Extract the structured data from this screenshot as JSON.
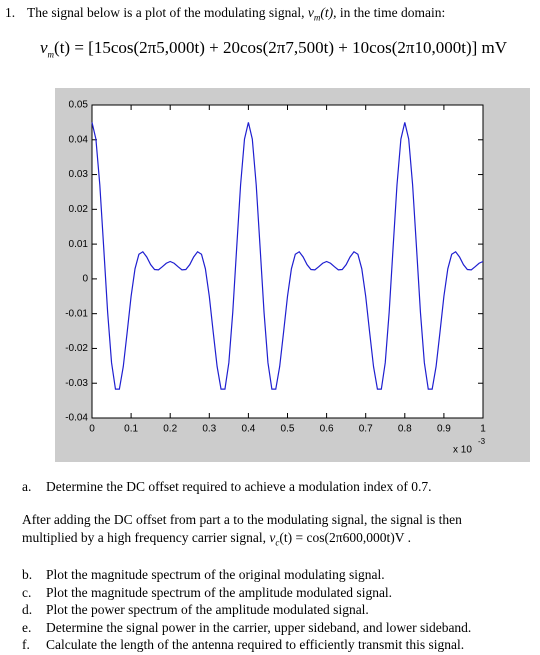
{
  "question": {
    "number": "1.",
    "intro_before": "The signal below is a plot of the modulating signal, ",
    "intro_var": "v",
    "intro_sub": "m",
    "intro_arg": "(t)",
    "intro_after": ", in the time domain:"
  },
  "formula": {
    "var": "v",
    "sub": "m",
    "rhs": "(t) = [15cos(2π5,000t) + 20cos(2π7,500t) + 10cos(2π10,000t)] mV"
  },
  "chart_data": {
    "type": "line",
    "x": [
      0,
      0.01,
      0.02,
      0.03,
      0.04,
      0.05,
      0.06,
      0.07,
      0.08,
      0.09,
      0.1,
      0.11,
      0.12,
      0.13,
      0.14,
      0.15,
      0.16,
      0.17,
      0.18,
      0.19,
      0.2,
      0.21,
      0.22,
      0.23,
      0.24,
      0.25,
      0.26,
      0.27,
      0.28,
      0.29,
      0.3,
      0.31,
      0.32,
      0.33,
      0.34,
      0.35,
      0.36,
      0.37,
      0.38,
      0.39,
      0.4,
      0.41,
      0.42,
      0.43,
      0.44,
      0.45,
      0.46,
      0.47,
      0.48,
      0.49,
      0.5,
      0.51,
      0.52,
      0.53,
      0.54,
      0.55,
      0.56,
      0.57,
      0.58,
      0.59,
      0.6,
      0.61,
      0.62,
      0.63,
      0.64,
      0.65,
      0.66,
      0.67,
      0.68,
      0.69,
      0.7,
      0.71,
      0.72,
      0.73,
      0.74,
      0.75,
      0.76,
      0.77,
      0.78,
      0.79,
      0.8,
      0.81,
      0.82,
      0.83,
      0.84,
      0.85,
      0.86,
      0.87,
      0.88,
      0.89,
      0.9,
      0.91,
      0.92,
      0.93,
      0.94,
      0.95,
      0.96,
      0.97,
      0.98,
      0.99,
      1
    ],
    "values": [
      0.045,
      0.0402,
      0.027,
      0.0089,
      -0.0096,
      -0.0241,
      -0.0317,
      -0.0317,
      -0.0252,
      -0.0153,
      -0.005,
      0.0029,
      0.0071,
      0.0078,
      0.0063,
      0.0041,
      0.0027,
      0.0026,
      0.0035,
      0.0045,
      0.005,
      0.0045,
      0.0035,
      0.0026,
      0.0027,
      0.0041,
      0.0063,
      0.0078,
      0.0071,
      0.0029,
      -0.005,
      -0.0153,
      -0.0252,
      -0.0317,
      -0.0317,
      -0.0241,
      -0.0096,
      0.0089,
      0.027,
      0.0402,
      0.045,
      0.0402,
      0.027,
      0.0089,
      -0.0096,
      -0.0241,
      -0.0317,
      -0.0317,
      -0.0252,
      -0.0153,
      -0.005,
      0.0029,
      0.0071,
      0.0078,
      0.0063,
      0.0041,
      0.0027,
      0.0026,
      0.0035,
      0.0045,
      0.005,
      0.0045,
      0.0035,
      0.0026,
      0.0027,
      0.0041,
      0.0063,
      0.0078,
      0.0071,
      0.0029,
      -0.005,
      -0.0153,
      -0.0252,
      -0.0317,
      -0.0317,
      -0.0241,
      -0.0096,
      0.0089,
      0.027,
      0.0402,
      0.045,
      0.0402,
      0.027,
      0.0089,
      -0.0096,
      -0.0241,
      -0.0317,
      -0.0317,
      -0.0252,
      -0.0153,
      -0.005,
      0.0029,
      0.0071,
      0.0078,
      0.0063,
      0.0041,
      0.0027,
      0.0026,
      0.0035,
      0.0045,
      0.005
    ],
    "color": "#1f1fd0",
    "xlim": [
      0,
      1
    ],
    "ylim": [
      -0.04,
      0.05
    ],
    "xticks": [
      0,
      0.1,
      0.2,
      0.3,
      0.4,
      0.5,
      0.6,
      0.7,
      0.8,
      0.9,
      1
    ],
    "yticks": [
      -0.04,
      -0.03,
      -0.02,
      -0.01,
      0,
      0.01,
      0.02,
      0.03,
      0.04,
      0.05
    ],
    "x_scale_label": "x 10",
    "x_scale_exponent": "-3",
    "grid": false
  },
  "part_a": {
    "label": "a.",
    "text": "Determine the DC offset required to achieve a modulation index of 0.7."
  },
  "paragraph": {
    "line1": "After adding the DC offset from part a to the modulating signal, the signal is then",
    "line2_before": "multiplied by a high frequency carrier signal, ",
    "var": "v",
    "sub": "c",
    "rhs": "(t) = cos(2π600,000t)V ."
  },
  "parts": [
    {
      "label": "b.",
      "text": "Plot the magnitude spectrum of the original modulating signal."
    },
    {
      "label": "c.",
      "text": "Plot the magnitude spectrum of the amplitude modulated signal."
    },
    {
      "label": "d.",
      "text": "Plot the power spectrum of the amplitude modulated signal."
    },
    {
      "label": "e.",
      "text": "Determine the signal power in the carrier, upper sideband, and lower sideband."
    },
    {
      "label": "f.",
      "text": "Calculate the length of the antenna required to efficiently transmit this signal."
    }
  ]
}
